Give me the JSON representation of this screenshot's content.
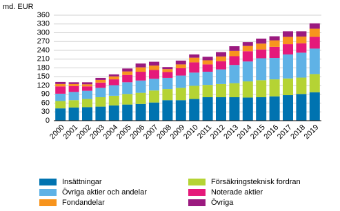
{
  "chart_data": {
    "type": "bar",
    "stacked": true,
    "y_label": "md. EUR",
    "categories": [
      "2000",
      "2001",
      "2002",
      "2003",
      "2004",
      "2005",
      "2006",
      "2007",
      "2008",
      "2009",
      "2010",
      "2011",
      "2012",
      "2013",
      "2014",
      "2015",
      "2016",
      "2017",
      "2018",
      "2019"
    ],
    "series": [
      {
        "name": "Insättningar",
        "color": "#0073b0",
        "values": [
          42,
          45,
          46,
          48,
          52,
          55,
          57,
          62,
          70,
          70,
          74,
          80,
          80,
          80,
          79,
          80,
          83,
          87,
          91,
          97
        ]
      },
      {
        "name": "Försäkringsteknisk fordran",
        "color": "#b5d334",
        "values": [
          25,
          25,
          28,
          32,
          33,
          36,
          38,
          41,
          38,
          42,
          45,
          42,
          45,
          48,
          55,
          58,
          58,
          57,
          56,
          62
        ]
      },
      {
        "name": "Övriga aktier och andelar",
        "color": "#5fb2e6",
        "values": [
          25,
          28,
          28,
          32,
          36,
          40,
          42,
          40,
          38,
          42,
          45,
          45,
          50,
          62,
          68,
          75,
          73,
          82,
          85,
          87
        ]
      },
      {
        "name": "Noterade aktier",
        "color": "#e5197a",
        "values": [
          25,
          20,
          15,
          18,
          20,
          25,
          30,
          30,
          20,
          25,
          35,
          25,
          28,
          30,
          35,
          30,
          38,
          35,
          32,
          40
        ]
      },
      {
        "name": "Fondandelar",
        "color": "#f7941d",
        "values": [
          8,
          7,
          7,
          9,
          10,
          12,
          15,
          15,
          10,
          13,
          16,
          14,
          16,
          18,
          18,
          20,
          22,
          25,
          23,
          28
        ]
      },
      {
        "name": "Övriga",
        "color": "#9b1a7f",
        "values": [
          7,
          6,
          7,
          7,
          7,
          10,
          13,
          13,
          7,
          13,
          11,
          12,
          15,
          16,
          13,
          17,
          14,
          19,
          18,
          18
        ]
      }
    ],
    "ylim": [
      0,
      360
    ],
    "yticks": [
      0,
      30,
      60,
      90,
      120,
      150,
      180,
      210,
      240,
      270,
      300,
      330,
      360
    ],
    "grid": true
  }
}
